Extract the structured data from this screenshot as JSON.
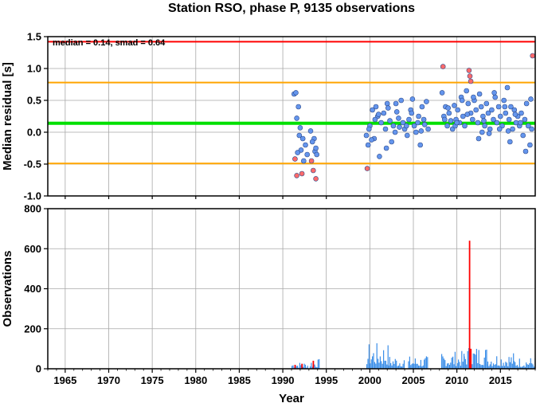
{
  "chart_data": [
    {
      "type": "scatter",
      "title": "Station RSO, phase P, 9135 observations",
      "ylabel": "Median residual [s]",
      "xlim": [
        1963,
        2019
      ],
      "ylim": [
        -1.0,
        1.5
      ],
      "yticks": [
        -1.0,
        -0.5,
        0.0,
        0.5,
        1.0,
        1.5
      ],
      "ytick_labels": [
        "-1.0",
        "-0.5",
        "0.0",
        "0.5",
        "1.0",
        "1.5"
      ],
      "grid": true,
      "annotation": "median = 0.14, smad = 0.64",
      "hlines": [
        {
          "y": 1.42,
          "color": "#ff0000"
        },
        {
          "y": 0.78,
          "color": "#ffa500"
        },
        {
          "y": 0.14,
          "color": "#00e000"
        },
        {
          "y": -0.49,
          "color": "#ffa500"
        }
      ],
      "colors": {
        "inlier": "#6495ed",
        "outlier": "#ff6a6a"
      },
      "series": [
        {
          "color": "#6495ed",
          "x": [
            1991.3,
            1991.5,
            1991.8,
            1991.6,
            1992.0,
            1991.9,
            1992.3,
            1992.6,
            1992.1,
            1992.8,
            1991.7,
            1992.4,
            1993.2,
            1993.6,
            1993.4,
            1993.7,
            1993.9,
            1993.8,
            1999.6,
            1999.8,
            2000.0,
            2000.3,
            2000.5,
            2000.7,
            2000.9,
            2001.1,
            2001.3,
            2001.6,
            2001.8,
            2002.0,
            2002.3,
            2002.5,
            2002.7,
            2002.9,
            2003.1,
            2003.3,
            2003.6,
            2003.8,
            2004.0,
            2004.3,
            2004.5,
            2004.7,
            2004.9,
            2005.1,
            2005.3,
            2005.6,
            2005.8,
            2006.0,
            2006.3,
            2006.5,
            2006.7,
            2000.2,
            2001.0,
            2002.1,
            2003.4,
            2004.8,
            2005.5,
            2006.2,
            1999.9,
            2000.6,
            2001.9,
            2003.0,
            2004.2,
            2005.9,
            2008.3,
            2008.5,
            2008.7,
            2008.9,
            2009.1,
            2009.3,
            2009.5,
            2009.7,
            2009.9,
            2010.1,
            2010.3,
            2010.5,
            2010.7,
            2010.9,
            2011.1,
            2011.3,
            2011.6,
            2011.8,
            2012.0,
            2012.2,
            2012.4,
            2012.6,
            2012.8,
            2013.0,
            2013.2,
            2013.4,
            2013.6,
            2013.8,
            2014.0,
            2014.2,
            2014.4,
            2014.6,
            2014.8,
            2015.0,
            2015.2,
            2015.4,
            2015.6,
            2015.8,
            2016.0,
            2016.2,
            2016.4,
            2016.6,
            2016.8,
            2017.0,
            2017.2,
            2017.4,
            2017.6,
            2017.8,
            2018.0,
            2018.2,
            2018.4,
            2018.6,
            2008.6,
            2009.0,
            2009.8,
            2010.6,
            2011.2,
            2011.9,
            2012.5,
            2013.1,
            2013.7,
            2014.3,
            2014.9,
            2015.5,
            2016.1,
            2016.7,
            2017.3,
            2017.9,
            2018.5,
            2010.0,
            2012.9,
            2015.9
          ],
          "y": [
            0.6,
            0.62,
            0.4,
            0.22,
            0.07,
            -0.05,
            -0.1,
            -0.2,
            -0.28,
            -0.35,
            -0.32,
            -0.45,
            0.02,
            -0.1,
            -0.15,
            -0.3,
            -0.35,
            -0.25,
            -0.05,
            -0.2,
            0.1,
            0.35,
            -0.1,
            0.4,
            0.25,
            -0.38,
            0.15,
            0.3,
            0.05,
            0.45,
            0.18,
            -0.15,
            0.1,
            0.0,
            0.32,
            0.22,
            0.5,
            0.15,
            0.05,
            -0.05,
            0.2,
            0.35,
            0.52,
            0.1,
            0.0,
            0.25,
            -0.2,
            0.4,
            0.12,
            0.48,
            0.05,
            -0.12,
            0.28,
            0.38,
            0.08,
            0.3,
            0.15,
            0.2,
            0.05,
            0.2,
            -0.25,
            0.45,
            0.1,
            0.02,
            0.62,
            0.25,
            0.4,
            0.1,
            0.3,
            0.18,
            0.05,
            0.42,
            0.2,
            0.35,
            0.15,
            0.55,
            0.25,
            0.1,
            0.65,
            0.45,
            0.3,
            0.2,
            0.5,
            0.35,
            0.15,
            0.6,
            0.4,
            0.25,
            0.1,
            0.45,
            0.3,
            0.05,
            0.35,
            0.2,
            0.55,
            0.15,
            0.4,
            0.25,
            0.1,
            0.5,
            0.3,
            0.7,
            0.2,
            0.4,
            0.05,
            0.35,
            0.15,
            0.25,
            0.1,
            0.3,
            -0.05,
            0.2,
            0.45,
            0.1,
            -0.2,
            0.05,
            0.2,
            0.38,
            0.1,
            0.5,
            0.28,
            0.55,
            -0.1,
            0.18,
            -0.02,
            0.62,
            0.05,
            0.4,
            -0.15,
            0.28,
            0.15,
            -0.3,
            0.52,
            0.15,
            0.0,
            0.02
          ]
        },
        {
          "color": "#ff6a6a",
          "x": [
            1991.4,
            1991.6,
            1992.2,
            1993.3,
            1993.5,
            1993.8,
            1999.7,
            2008.4,
            2011.4,
            2011.5,
            2011.6,
            2018.7
          ],
          "y": [
            -0.42,
            -0.68,
            -0.65,
            -0.45,
            -0.6,
            -0.73,
            -0.57,
            1.03,
            0.97,
            0.88,
            0.8,
            1.2
          ]
        }
      ]
    },
    {
      "type": "bar",
      "xlabel": "Year",
      "ylabel": "Observations",
      "xlim": [
        1963,
        2019
      ],
      "ylim": [
        0,
        800
      ],
      "xticks": [
        1965,
        1970,
        1975,
        1980,
        1985,
        1990,
        1995,
        2000,
        2005,
        2010,
        2015
      ],
      "xtick_labels": [
        "1965",
        "1970",
        "1975",
        "1980",
        "1985",
        "1990",
        "1995",
        "2000",
        "2005",
        "2010",
        "2015"
      ],
      "yticks": [
        0,
        200,
        400,
        600,
        800
      ],
      "ytick_labels": [
        "0",
        "200",
        "400",
        "600",
        "800"
      ],
      "grid": true,
      "colors": {
        "normal": "#3b8ee8",
        "outlier": "#ff0000"
      },
      "segments": [
        {
          "from": 1991.0,
          "to": 1992.8,
          "peak": 35
        },
        {
          "from": 1993.1,
          "to": 1994.2,
          "peak": 50
        },
        {
          "from": 1999.6,
          "to": 2002.1,
          "peak": 130
        },
        {
          "from": 2002.1,
          "to": 2004.0,
          "peak": 70
        },
        {
          "from": 2004.4,
          "to": 2006.6,
          "peak": 65
        },
        {
          "from": 2008.2,
          "to": 2010.8,
          "peak": 90
        },
        {
          "from": 2010.8,
          "to": 2013.5,
          "peak": 120
        },
        {
          "from": 2013.5,
          "to": 2016.5,
          "peak": 85
        },
        {
          "from": 2016.5,
          "to": 2019.0,
          "peak": 60
        }
      ],
      "red_bars": [
        {
          "x": 1991.4,
          "value": 20
        },
        {
          "x": 1992.2,
          "value": 25
        },
        {
          "x": 1993.5,
          "value": 40
        },
        {
          "x": 2011.45,
          "value": 640
        },
        {
          "x": 2011.6,
          "value": 100
        }
      ]
    }
  ]
}
